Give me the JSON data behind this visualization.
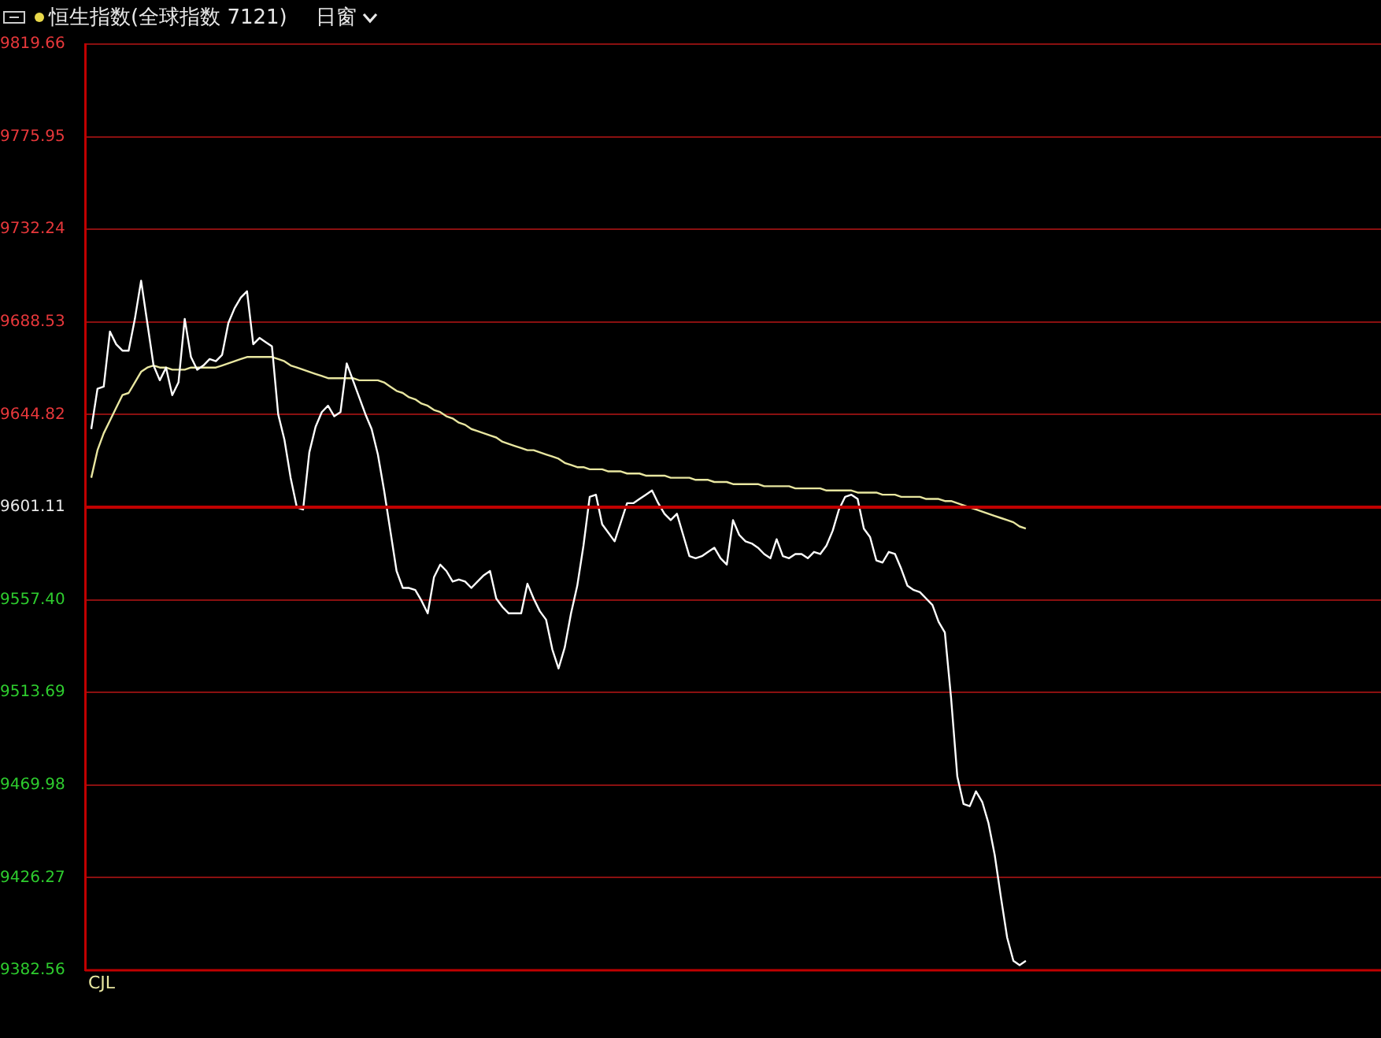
{
  "chart_data": {
    "type": "line",
    "title": "恒生指数(全球指数 7121)",
    "subtitle": "日窗",
    "annotations": [
      "CJL"
    ],
    "categories": [
      null,
      null,
      null,
      null,
      null,
      null,
      null,
      null,
      null,
      null,
      null,
      null,
      null,
      null,
      null,
      null,
      null,
      null,
      null,
      null,
      null,
      null,
      null,
      null,
      null,
      null,
      null,
      null,
      null,
      null,
      null,
      null,
      null,
      null,
      null,
      null,
      null,
      null,
      null,
      null,
      null,
      null,
      null,
      null,
      null,
      null,
      null,
      null,
      null,
      null,
      null,
      null,
      null,
      null,
      null,
      null,
      null,
      null,
      null,
      null,
      null,
      null,
      null,
      null,
      null,
      null,
      null,
      null,
      null,
      null,
      null,
      null,
      null,
      null,
      null,
      null,
      null,
      null,
      null,
      null,
      null,
      null,
      null,
      null,
      null,
      null,
      null,
      null,
      null,
      null,
      null,
      null,
      null,
      null,
      null,
      null,
      null,
      null,
      null,
      null,
      null,
      null,
      null,
      null,
      null,
      null,
      null,
      null,
      null,
      null,
      null,
      null,
      null,
      null,
      null,
      null,
      null,
      null,
      null,
      null,
      null,
      null,
      null,
      null,
      null,
      null,
      null,
      null,
      null,
      null,
      null,
      null,
      null,
      null,
      null,
      null,
      null,
      null,
      null,
      null,
      null,
      null,
      null,
      null,
      null,
      null,
      null,
      null,
      null,
      null,
      null,
      null,
      null,
      null,
      null,
      null,
      null,
      null,
      null,
      null,
      null,
      null,
      null,
      null,
      null,
      null,
      null,
      null,
      null,
      null,
      null,
      null,
      null,
      null,
      null,
      null,
      null,
      null,
      null,
      null,
      null,
      null,
      null,
      null,
      null,
      null,
      null,
      null,
      null,
      null,
      null,
      null,
      null,
      null,
      null,
      null,
      null,
      null,
      null,
      null,
      null,
      null,
      null,
      null,
      null,
      null,
      null,
      null,
      null
    ],
    "ylim": [
      9382.56,
      9819.66
    ],
    "yticks": [
      9382.56,
      9426.27,
      9469.98,
      9513.69,
      {
        "value": 9557.4,
        "label": "9557.40"
      },
      9601.11,
      9644.82,
      9688.53,
      9732.24,
      9775.95,
      9819.66
    ],
    "tick_labels": "y",
    "grid": "y",
    "marker": "none",
    "line_style": "solid",
    "ref_lines": [
      {
        "axis": "y",
        "value": 9601.11,
        "color": "#c00000"
      }
    ],
    "series": [
      {
        "color": "#ffffff",
        "values": [
          null,
          9638,
          9657,
          9658,
          9684,
          9678,
          9675,
          9675,
          9690,
          9708,
          9688,
          9668,
          9661,
          9667,
          9654,
          9660,
          9690,
          9672,
          9666,
          9668,
          9671,
          9670,
          9673,
          9688,
          9695,
          9700,
          9703,
          9678,
          9681,
          9679,
          9677,
          9645,
          9633,
          9615,
          9601,
          9600,
          9627,
          9639,
          9646,
          9649,
          9644,
          9646,
          9669,
          9661,
          9653,
          9645,
          9638,
          9626,
          9609,
          9590,
          9571,
          9563,
          9563,
          9562,
          9557,
          9551,
          9568,
          9574,
          9571,
          9566,
          9567,
          9566,
          9563,
          9566,
          9569,
          9571,
          9558,
          9554,
          9551,
          9551,
          9551,
          9565,
          9558,
          9552,
          9548,
          9534,
          9525,
          9535,
          9551,
          9564,
          9583,
          9606,
          9607,
          9593,
          9589,
          9585,
          9594,
          9603,
          9603,
          9605,
          9607,
          9609,
          9603,
          9598,
          9595,
          9598,
          9588,
          9578,
          9577,
          9578,
          9580,
          9582,
          9577,
          9574,
          9595,
          9588,
          9585,
          9584,
          9582,
          9579,
          9577,
          9586,
          9578,
          9577,
          9579,
          9579,
          9577,
          9580,
          9579,
          9583,
          9590,
          9600,
          9606,
          9607,
          9605,
          9591,
          9587,
          9576,
          9575,
          9580,
          9579,
          9572,
          9564,
          9562,
          9561,
          9558,
          9555,
          9547,
          9542,
          9511,
          9474,
          9461,
          9460,
          9467,
          9462,
          9452,
          9437,
          9417,
          9398,
          9387,
          9385,
          9387,
          null,
          null,
          null,
          null,
          null,
          null,
          null,
          null,
          null,
          null,
          null,
          null,
          null,
          null,
          null,
          null,
          null,
          null,
          null,
          null,
          null,
          null,
          null,
          null,
          null,
          null,
          null,
          null,
          null,
          null,
          null,
          null,
          null,
          null,
          null,
          null,
          null,
          null,
          null,
          null,
          null,
          null,
          null,
          null,
          null,
          null,
          null,
          null,
          null,
          null,
          null,
          null,
          null,
          null,
          null,
          null,
          null
        ]
      },
      {
        "color": "#e8e6a0",
        "values": [
          null,
          9615,
          9628,
          9636,
          9642,
          9648,
          9654,
          9655,
          9660,
          9665,
          9667,
          9668,
          9667,
          9667,
          9666,
          9666,
          9666,
          9667,
          9667,
          9667,
          9667,
          9667,
          9668,
          9669,
          9670,
          9671,
          9672,
          9672,
          9672,
          9672,
          9672,
          9671,
          9670,
          9668,
          9667,
          9666,
          9665,
          9664,
          9663,
          9662,
          9662,
          9662,
          9662,
          9662,
          9661,
          9661,
          9661,
          9661,
          9660,
          9658,
          9656,
          9655,
          9653,
          9652,
          9650,
          9649,
          9647,
          9646,
          9644,
          9643,
          9641,
          9640,
          9638,
          9637,
          9636,
          9635,
          9634,
          9632,
          9631,
          9630,
          9629,
          9628,
          9628,
          9627,
          9626,
          9625,
          9624,
          9622,
          9621,
          9620,
          9620,
          9619,
          9619,
          9619,
          9618,
          9618,
          9618,
          9617,
          9617,
          9617,
          9616,
          9616,
          9616,
          9616,
          9615,
          9615,
          9615,
          9615,
          9614,
          9614,
          9614,
          9613,
          9613,
          9613,
          9612,
          9612,
          9612,
          9612,
          9612,
          9611,
          9611,
          9611,
          9611,
          9611,
          9610,
          9610,
          9610,
          9610,
          9610,
          9609,
          9609,
          9609,
          9609,
          9609,
          9608,
          9608,
          9608,
          9608,
          9607,
          9607,
          9607,
          9606,
          9606,
          9606,
          9606,
          9605,
          9605,
          9605,
          9604,
          9604,
          9603,
          9602,
          9601,
          9600,
          9599,
          9598,
          9597,
          9596,
          9595,
          9594,
          9592,
          9591,
          null,
          null,
          null,
          null,
          null,
          null,
          null,
          null,
          null,
          null,
          null,
          null,
          null,
          null,
          null,
          null,
          null,
          null,
          null,
          null,
          null,
          null,
          null,
          null,
          null,
          null,
          null,
          null,
          null,
          null,
          null,
          null,
          null,
          null,
          null,
          null,
          null,
          null,
          null,
          null,
          null,
          null,
          null,
          null,
          null,
          null,
          null,
          null,
          null,
          null,
          null,
          null,
          null,
          null,
          null,
          null,
          null
        ]
      }
    ]
  }
}
